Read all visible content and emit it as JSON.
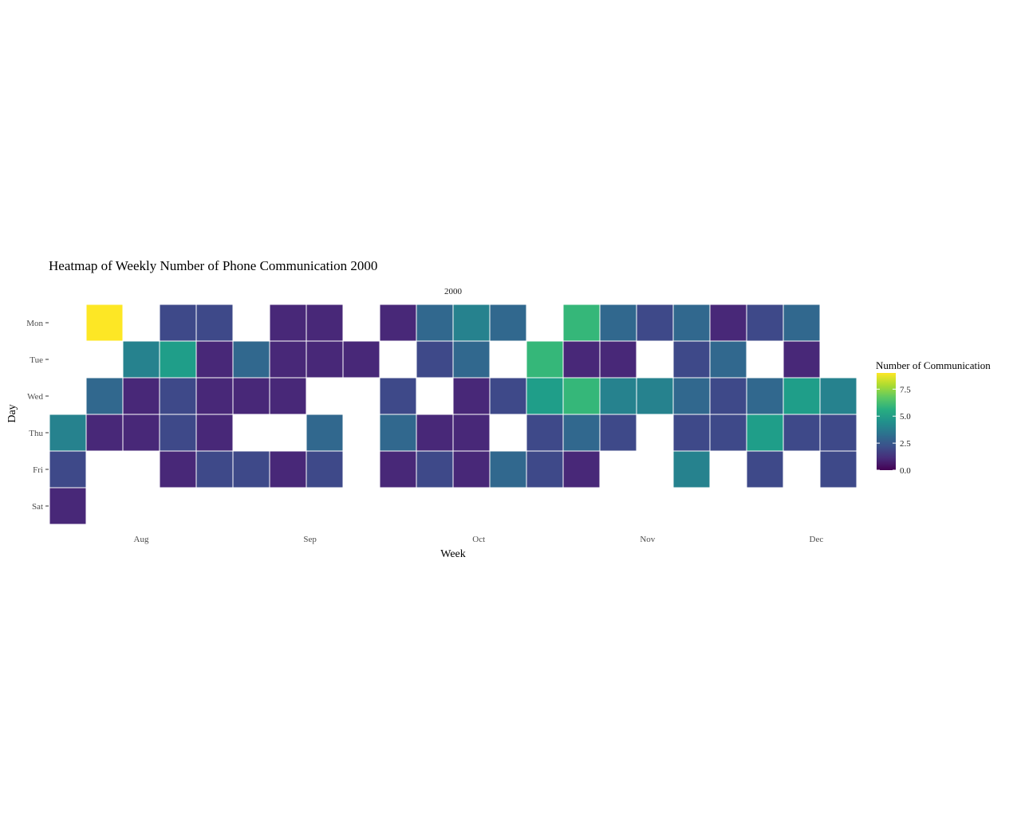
{
  "chart_data": {
    "type": "heatmap",
    "title": "Heatmap of Weekly Number of Phone Communication 2000",
    "facet_label": "2000",
    "xlabel": "Week",
    "ylabel": "Day",
    "x_ticks": [
      {
        "label": "Aug",
        "week": 3
      },
      {
        "label": "Sep",
        "week": 7.6
      },
      {
        "label": "Oct",
        "week": 12.2
      },
      {
        "label": "Nov",
        "week": 16.8
      },
      {
        "label": "Dec",
        "week": 21.4
      }
    ],
    "days": [
      "Mon",
      "Tue",
      "Wed",
      "Thu",
      "Fri",
      "Sat"
    ],
    "weeks": 22,
    "legend": {
      "title": "Number of Communication",
      "min": 0,
      "max": 9,
      "ticks": [
        {
          "label": "0.0",
          "value": 0
        },
        {
          "label": "2.5",
          "value": 2.5
        },
        {
          "label": "5.0",
          "value": 5
        },
        {
          "label": "7.5",
          "value": 7.5
        }
      ],
      "placement": "right"
    },
    "values": [
      [
        null,
        9,
        null,
        2,
        2,
        null,
        1,
        1,
        null,
        1,
        3,
        4,
        3,
        null,
        6,
        3,
        2,
        3,
        1,
        2,
        3,
        null
      ],
      [
        null,
        null,
        4,
        5,
        1,
        3,
        1,
        1,
        1,
        null,
        2,
        3,
        null,
        6,
        1,
        1,
        null,
        2,
        3,
        null,
        1,
        null
      ],
      [
        null,
        3,
        1,
        2,
        1,
        1,
        1,
        null,
        null,
        2,
        null,
        1,
        2,
        5,
        6,
        4,
        4,
        3,
        2,
        3,
        5,
        4
      ],
      [
        4,
        1,
        1,
        2,
        1,
        null,
        null,
        3,
        null,
        3,
        1,
        1,
        null,
        2,
        3,
        2,
        null,
        2,
        2,
        5,
        2,
        2
      ],
      [
        2,
        null,
        null,
        1,
        2,
        2,
        1,
        2,
        null,
        1,
        2,
        1,
        3,
        2,
        1,
        null,
        null,
        4,
        null,
        2,
        null,
        2
      ],
      [
        1,
        null,
        null,
        null,
        null,
        null,
        null,
        null,
        null,
        null,
        null,
        null,
        null,
        null,
        null,
        null,
        null,
        null,
        null,
        null,
        null,
        null
      ]
    ]
  }
}
